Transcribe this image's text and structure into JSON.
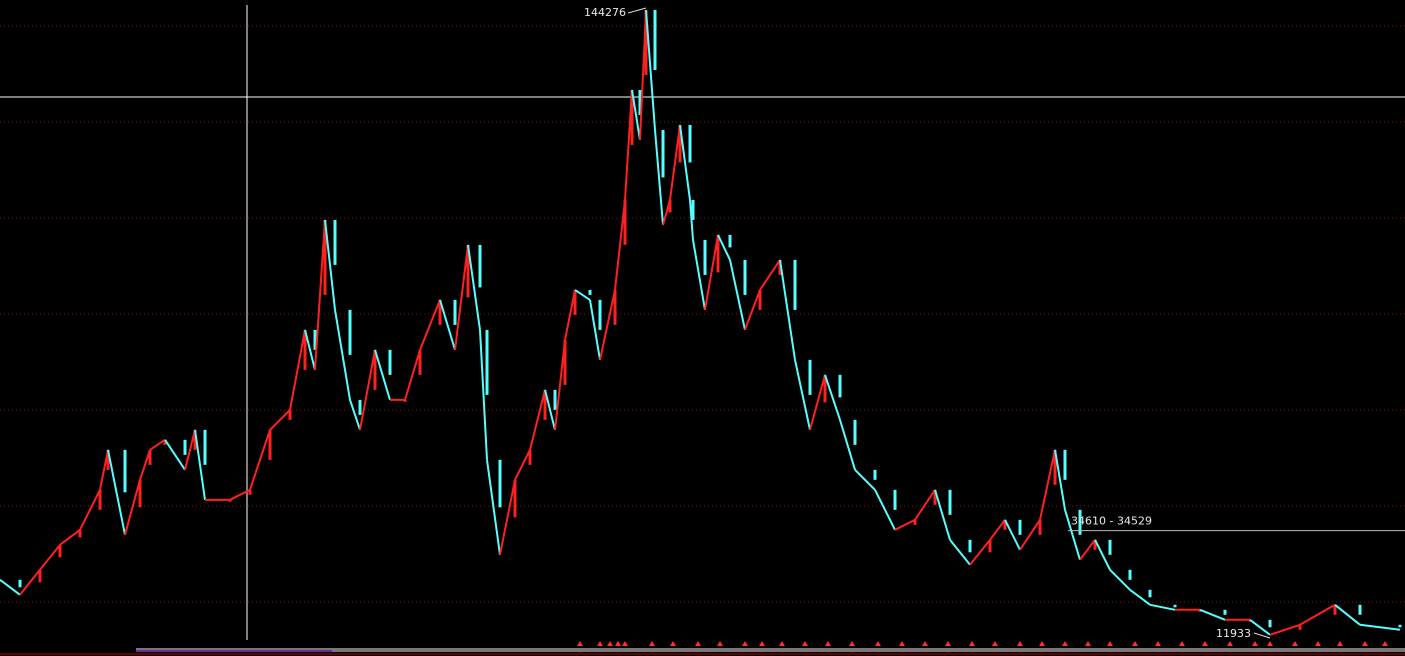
{
  "chart_data": {
    "type": "candle-line",
    "x": [
      0,
      20,
      40,
      60,
      80,
      100,
      108,
      125,
      140,
      150,
      165,
      185,
      195,
      205,
      230,
      250,
      270,
      290,
      305,
      315,
      325,
      335,
      350,
      360,
      375,
      390,
      405,
      420,
      440,
      455,
      468,
      480,
      487,
      500,
      515,
      530,
      545,
      555,
      565,
      575,
      590,
      600,
      615,
      625,
      632,
      640,
      646,
      655,
      663,
      670,
      680,
      690,
      693,
      705,
      718,
      730,
      745,
      760,
      780,
      795,
      810,
      825,
      840,
      855,
      875,
      895,
      915,
      935,
      950,
      970,
      990,
      1005,
      1020,
      1040,
      1055,
      1065,
      1080,
      1095,
      1110,
      1130,
      1150,
      1175,
      1200,
      1225,
      1250,
      1270,
      1300,
      1335,
      1360,
      1400
    ],
    "values": [
      23584,
      20419,
      25694,
      30969,
      34134,
      42574,
      51014,
      33079,
      44684,
      51014,
      53124,
      46794,
      55234,
      40464,
      40464,
      42574,
      55234,
      59454,
      76334,
      67894,
      99544,
      80554,
      61564,
      55234,
      72114,
      61564,
      61564,
      72114,
      82664,
      72114,
      94269,
      76334,
      48904,
      28859,
      44684,
      51014,
      63674,
      55234,
      74224,
      84774,
      82664,
      70004,
      84774,
      103764,
      126974,
      116424,
      143854,
      118534,
      98489,
      103764,
      119589,
      103764,
      95324,
      80554,
      96379,
      91104,
      76334,
      84774,
      91104,
      70004,
      55234,
      66839,
      57344,
      46794,
      42574,
      34134,
      36244,
      42574,
      32024,
      26749,
      32024,
      36244,
      29914,
      36244,
      51014,
      38354,
      27804,
      32024,
      25694,
      21474,
      18309,
      17254,
      17254,
      15144,
      15144,
      11979,
      14089,
      18309,
      14089,
      13034
    ],
    "xlim": [
      0,
      1405
    ],
    "ylim": [
      9190,
      145964
    ],
    "up_color": "#ff2020",
    "down_color": "#54ffff",
    "high_label": 144276,
    "high_x": 646,
    "range_label": "34610 - 34529",
    "range_value": 34610,
    "range_x": 1068,
    "low_label": 11933,
    "low_x": 1270
  }
}
